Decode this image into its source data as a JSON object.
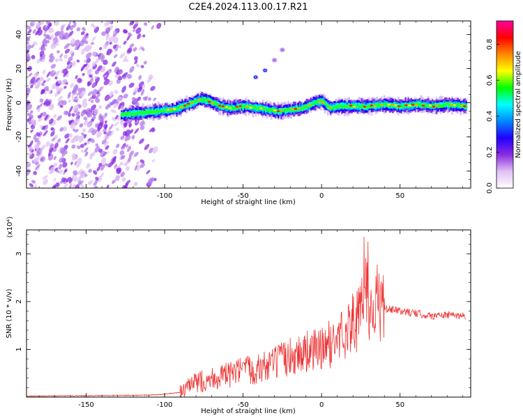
{
  "title": "C2E4.2024.113.00.17.R21",
  "chart_data": [
    {
      "type": "heatmap",
      "title": "C2E4.2024.113.00.17.R21",
      "xlabel": "Height of straight line (km)",
      "ylabel": "Frequency (Hz)",
      "xlim": [
        -188,
        95
      ],
      "ylim": [
        -50,
        48
      ],
      "xticks": [
        -150,
        -100,
        -50,
        0,
        50
      ],
      "yticks": [
        -40,
        -20,
        0,
        20,
        40
      ],
      "colorbar": {
        "label": "Normalized spectral amplitude",
        "range": [
          0,
          0.93
        ],
        "ticks": [
          0.0,
          0.2,
          0.4,
          0.6,
          0.8
        ],
        "colormap": [
          "#ffffff",
          "#e0c0f4",
          "#8a2be2",
          "#2200ff",
          "#0088ff",
          "#00ffff",
          "#00ff00",
          "#ffff00",
          "#ff8800",
          "#ff0000",
          "#ff00a0"
        ]
      },
      "ridge_center_hz": {
        "x": [
          -128,
          -115,
          -105,
          -95,
          -85,
          -78,
          -72,
          -65,
          -58,
          -50,
          -42,
          -35,
          -28,
          -20,
          -12,
          -5,
          0,
          5,
          10,
          20,
          30,
          40,
          50,
          60,
          70,
          80,
          92
        ],
        "y": [
          -7,
          -6,
          -5,
          -4,
          -1,
          2,
          1,
          -2,
          -3,
          -2,
          -3,
          -4,
          -5,
          -4,
          -3,
          0,
          1,
          -3,
          -2,
          -2,
          -2,
          -1,
          -2,
          -1,
          -2,
          -1,
          -2
        ]
      },
      "noise_region_x": [
        -188,
        -110
      ],
      "secondary_streak": {
        "x": [
          -42,
          -36,
          -30,
          -25
        ],
        "y": [
          15,
          19,
          25,
          31
        ]
      }
    },
    {
      "type": "line",
      "xlabel": "Height of straight line (km)",
      "ylabel": "SNR (10 * v/v)",
      "y_scale_label": "(x10⁴)",
      "xlim": [
        -188,
        95
      ],
      "ylim": [
        0,
        3.5
      ],
      "xticks": [
        -150,
        -100,
        -50,
        0,
        50
      ],
      "yticks": [
        1,
        2,
        3
      ],
      "color": "#ee3333",
      "series": [
        {
          "x": [
            -188,
            -150,
            -110,
            -100,
            -90,
            -85,
            -80,
            -75,
            -70,
            -60,
            -50,
            -40,
            -30,
            -20,
            -10,
            0,
            10,
            15,
            20,
            25,
            28,
            30,
            35,
            40,
            50,
            60,
            70,
            80,
            92
          ],
          "y": [
            0.02,
            0.03,
            0.04,
            0.06,
            0.1,
            0.2,
            0.3,
            0.35,
            0.4,
            0.45,
            0.55,
            0.6,
            0.7,
            0.85,
            0.95,
            1.0,
            1.2,
            1.4,
            1.55,
            1.7,
            2.5,
            1.9,
            2.0,
            1.85,
            1.8,
            1.75,
            1.7,
            1.72,
            1.7
          ]
        }
      ]
    }
  ]
}
